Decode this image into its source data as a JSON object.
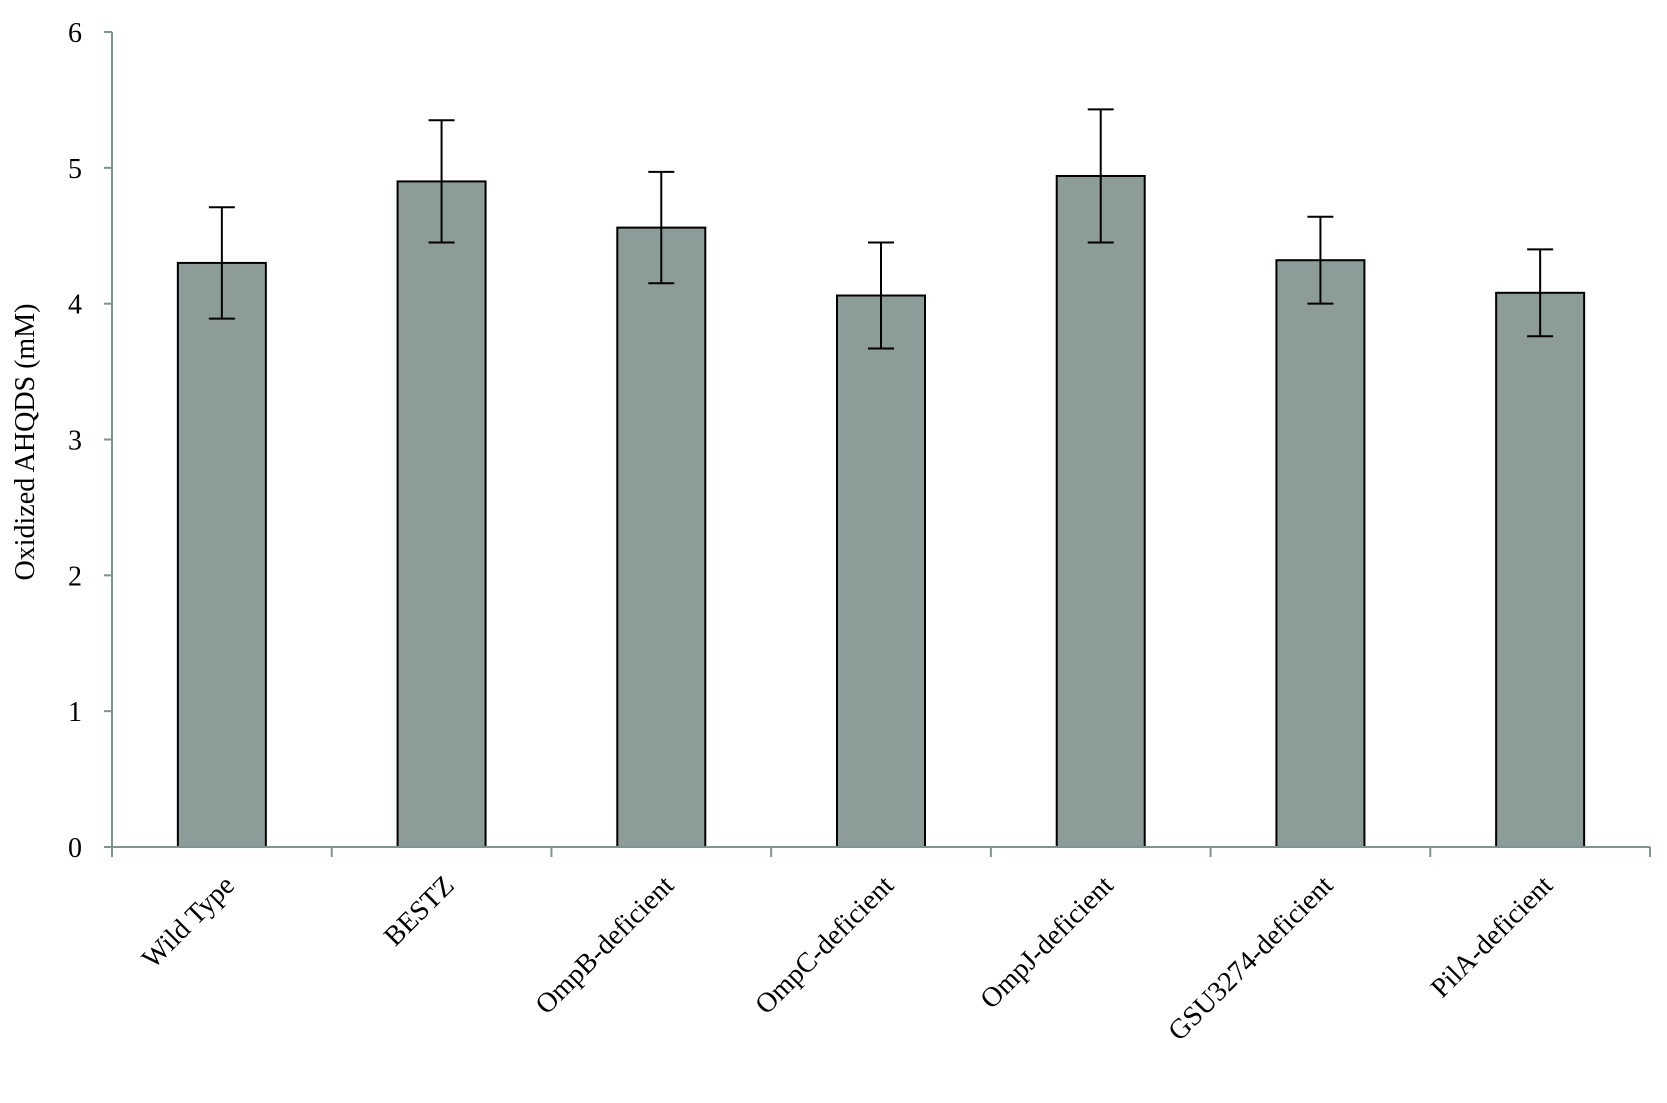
{
  "chart_data": {
    "type": "bar",
    "categories": [
      "Wild Type",
      "BESTZ",
      "OmpB-deficient",
      "OmpC-deficient",
      "OmpJ-deficient",
      "GSU3274-deficient",
      "PilA-deficient"
    ],
    "series": [
      {
        "values": [
          4.3,
          4.9,
          4.56,
          4.06,
          4.94,
          4.32,
          4.08
        ],
        "error": [
          0.41,
          0.45,
          0.41,
          0.39,
          0.49,
          0.32,
          0.32
        ],
        "color": "#8c9c99"
      }
    ],
    "title": "",
    "xlabel": "",
    "ylabel": "Oxidized AHQDS  (mM)",
    "ylim": [
      0,
      6
    ],
    "yticks": [
      "0",
      "1",
      "2",
      "3",
      "4",
      "5",
      "6"
    ],
    "grid": false,
    "legend": "none",
    "axis_color": "#7f9390"
  }
}
